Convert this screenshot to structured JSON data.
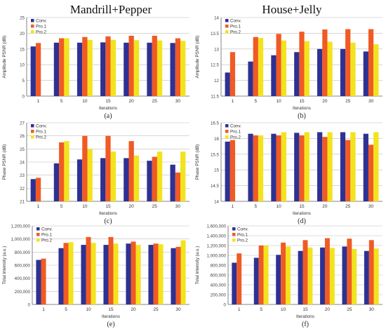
{
  "titles": {
    "left": "Mandrill+Pepper",
    "right": "House+Jelly"
  },
  "colors": {
    "conv": "#2e3192",
    "pro1": "#f15a24",
    "pro2": "#f2e31d",
    "grid": "#bdbdbd",
    "axis": "#666666"
  },
  "chart_data": [
    {
      "type": "bar",
      "caption": "(a)",
      "xlabel": "Iterations",
      "ylabel": "Amplitude PSNR (dB)",
      "ylim": [
        0,
        25
      ],
      "yticks": [
        0,
        5,
        10,
        15,
        20,
        25
      ],
      "tick_labels": [
        "0",
        "5",
        "10",
        "15",
        "20",
        "25"
      ],
      "categories": [
        "1",
        "5",
        "10",
        "15",
        "20",
        "25",
        "30"
      ],
      "series": [
        {
          "name": "Conv.",
          "values": [
            15.8,
            17.0,
            17.0,
            17.1,
            17.0,
            17.0,
            16.9
          ]
        },
        {
          "name": "Pro.1",
          "values": [
            16.9,
            18.4,
            18.8,
            19.0,
            19.2,
            19.2,
            18.4
          ]
        },
        {
          "name": "Pro.2",
          "values": [
            0,
            18.4,
            17.9,
            17.9,
            17.8,
            17.7,
            17.6
          ]
        }
      ]
    },
    {
      "type": "bar",
      "caption": "(b)",
      "xlabel": "Iterations",
      "ylabel": "Amplitude PSNR (dB)",
      "ylim": [
        11.5,
        14
      ],
      "yticks": [
        11.5,
        12,
        12.5,
        13,
        13.5,
        14
      ],
      "tick_labels": [
        "11.5",
        "12",
        "12.5",
        "13",
        "13.5",
        "14"
      ],
      "categories": [
        "1",
        "5",
        "10",
        "15",
        "20",
        "25",
        "30"
      ],
      "series": [
        {
          "name": "Conv.",
          "values": [
            12.25,
            12.6,
            12.8,
            12.9,
            13.0,
            13.0,
            12.92
          ]
        },
        {
          "name": "Pro.1",
          "values": [
            12.9,
            13.38,
            13.48,
            13.55,
            13.62,
            13.63,
            13.63
          ]
        },
        {
          "name": "Pro.2",
          "values": [
            11.5,
            13.35,
            13.27,
            13.25,
            13.23,
            13.2,
            13.15
          ]
        }
      ]
    },
    {
      "type": "bar",
      "caption": "(c)",
      "xlabel": "Iterations",
      "ylabel": "Phase PSNR (dB)",
      "ylim": [
        21,
        27
      ],
      "yticks": [
        21,
        22,
        23,
        24,
        25,
        26,
        27
      ],
      "tick_labels": [
        "21",
        "22",
        "23",
        "24",
        "25",
        "26",
        "27"
      ],
      "categories": [
        "1",
        "5",
        "10",
        "15",
        "20",
        "25",
        "30"
      ],
      "series": [
        {
          "name": "Conv.",
          "values": [
            22.7,
            23.9,
            24.2,
            24.3,
            24.3,
            24.1,
            23.8
          ]
        },
        {
          "name": "Pro.1",
          "values": [
            22.8,
            25.5,
            26.0,
            26.0,
            25.6,
            24.4,
            23.2
          ]
        },
        {
          "name": "Pro.2",
          "values": [
            21.0,
            25.6,
            25.0,
            24.8,
            24.5,
            24.8,
            24.8
          ]
        }
      ]
    },
    {
      "type": "bar",
      "caption": "(d)",
      "xlabel": "Iterations",
      "ylabel": "Phase PSNR (dB)",
      "ylim": [
        14,
        16.5
      ],
      "yticks": [
        14,
        14.5,
        15,
        15.5,
        16,
        16.5
      ],
      "tick_labels": [
        "14",
        "14.5",
        "15",
        "15.5",
        "16",
        "16.5"
      ],
      "categories": [
        "1",
        "5",
        "10",
        "15",
        "20",
        "25",
        "30"
      ],
      "series": [
        {
          "name": "Conv.",
          "values": [
            15.9,
            16.15,
            16.15,
            16.18,
            16.2,
            16.2,
            16.15
          ]
        },
        {
          "name": "Pro.1",
          "values": [
            15.95,
            16.1,
            16.1,
            16.1,
            16.05,
            15.95,
            15.8
          ]
        },
        {
          "name": "Pro.2",
          "values": [
            14.0,
            16.1,
            16.2,
            16.2,
            16.2,
            16.2,
            16.2
          ]
        }
      ]
    },
    {
      "type": "bar",
      "caption": "(e)",
      "xlabel": "Iterations",
      "ylabel": "Total intensity (a.u.)",
      "ylim": [
        0,
        1200000
      ],
      "yticks": [
        0,
        200000,
        400000,
        600000,
        800000,
        1000000,
        1200000
      ],
      "tick_labels": [
        "0",
        "200,000",
        "400,000",
        "600,000",
        "800,000",
        "1,000,000",
        "1,200,000"
      ],
      "categories": [
        "1",
        "5",
        "10",
        "15",
        "20",
        "25",
        "30"
      ],
      "series": [
        {
          "name": "Conv.",
          "values": [
            680000,
            860000,
            910000,
            910000,
            930000,
            910000,
            860000
          ]
        },
        {
          "name": "Pro.1",
          "values": [
            700000,
            940000,
            1030000,
            1030000,
            960000,
            930000,
            880000
          ]
        },
        {
          "name": "Pro.2",
          "values": [
            0,
            950000,
            940000,
            930000,
            910000,
            920000,
            980000
          ]
        }
      ]
    },
    {
      "type": "bar",
      "caption": "(f)",
      "xlabel": "Iterations",
      "ylabel": "Total intensity (a.u.)",
      "ylim": [
        0,
        1600000
      ],
      "yticks": [
        0,
        200000,
        400000,
        600000,
        800000,
        1000000,
        1200000,
        1400000,
        1600000
      ],
      "tick_labels": [
        "0",
        "200,000",
        "400,000",
        "600,000",
        "800,000",
        "1,000,000",
        "1,200,000",
        "1,400,000",
        "1,600,000"
      ],
      "categories": [
        "1",
        "5",
        "10",
        "15",
        "20",
        "25",
        "30"
      ],
      "series": [
        {
          "name": "Conv.",
          "values": [
            850000,
            950000,
            1010000,
            1090000,
            1160000,
            1180000,
            1090000
          ]
        },
        {
          "name": "Pro.1",
          "values": [
            1040000,
            1200000,
            1260000,
            1310000,
            1350000,
            1340000,
            1310000
          ]
        },
        {
          "name": "Pro.2",
          "values": [
            0,
            1200000,
            1180000,
            1160000,
            1150000,
            1130000,
            1140000
          ]
        }
      ]
    }
  ]
}
